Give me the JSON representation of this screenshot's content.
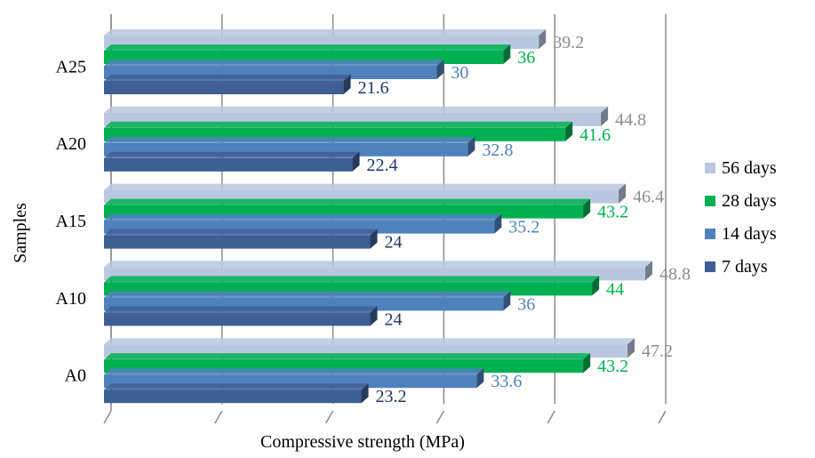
{
  "chart_data": {
    "type": "bar",
    "orientation": "horizontal",
    "style": "3d-clustered",
    "categories": [
      "A0",
      "A10",
      "A15",
      "A20",
      "A25"
    ],
    "series": [
      {
        "name": "7 days",
        "values": [
          23.2,
          24,
          24,
          22.4,
          21.6
        ],
        "color": "#3E5F94",
        "label_color": "#1F3864"
      },
      {
        "name": "14 days",
        "values": [
          33.6,
          36,
          35.2,
          32.8,
          30
        ],
        "color": "#4F81BD",
        "label_color": "#4F81BD"
      },
      {
        "name": "28 days",
        "values": [
          43.2,
          44,
          43.2,
          41.6,
          36
        ],
        "color": "#00B050",
        "label_color": "#00B050"
      },
      {
        "name": "56 days",
        "values": [
          47.2,
          48.8,
          46.4,
          44.8,
          39.2
        ],
        "color": "#B9C7E0",
        "label_color": "#8C8C8C"
      }
    ],
    "xlabel": "Compressive strength (MPa)",
    "ylabel": "Samples",
    "xlim": [
      0,
      50
    ],
    "x_tick_labels_shown": false,
    "grid": true,
    "legend": "right"
  }
}
